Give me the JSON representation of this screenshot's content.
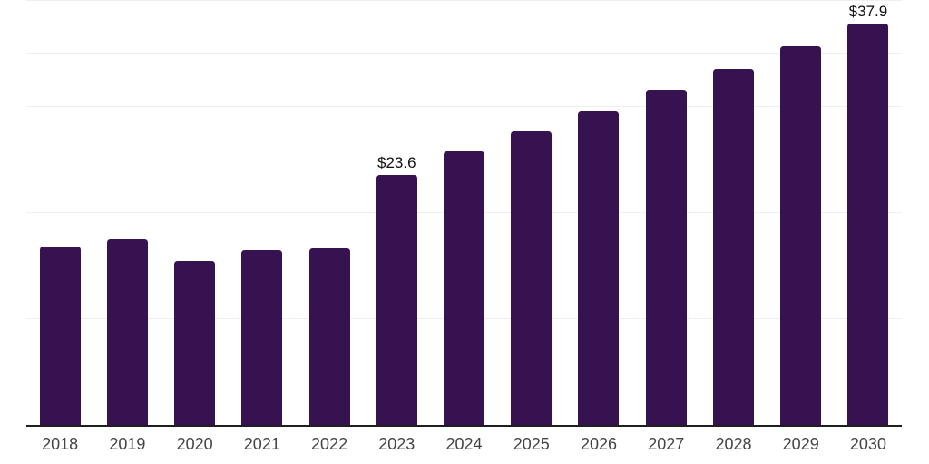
{
  "chart_data": {
    "type": "bar",
    "categories": [
      "2018",
      "2019",
      "2020",
      "2021",
      "2022",
      "2023",
      "2024",
      "2025",
      "2026",
      "2027",
      "2028",
      "2029",
      "2030"
    ],
    "values": [
      16.8,
      17.5,
      15.5,
      16.5,
      16.7,
      23.6,
      25.8,
      27.7,
      29.6,
      31.6,
      33.6,
      35.7,
      37.9
    ],
    "bar_labels": [
      "",
      "",
      "",
      "",
      "",
      "$23.6",
      "",
      "",
      "",
      "",
      "",
      "",
      "$37.9"
    ],
    "title": "",
    "xlabel": "",
    "ylabel": "",
    "ylim": [
      0,
      40
    ],
    "gridline_step": 5,
    "grid": true,
    "legend": false,
    "y_axis_labels_visible": false,
    "colors": {
      "bar": "#361350",
      "axis_line": "#1f1f1f",
      "gridline": "#efefef",
      "value_label": "#111111",
      "tick_label": "#444444",
      "background": "#ffffff"
    }
  }
}
